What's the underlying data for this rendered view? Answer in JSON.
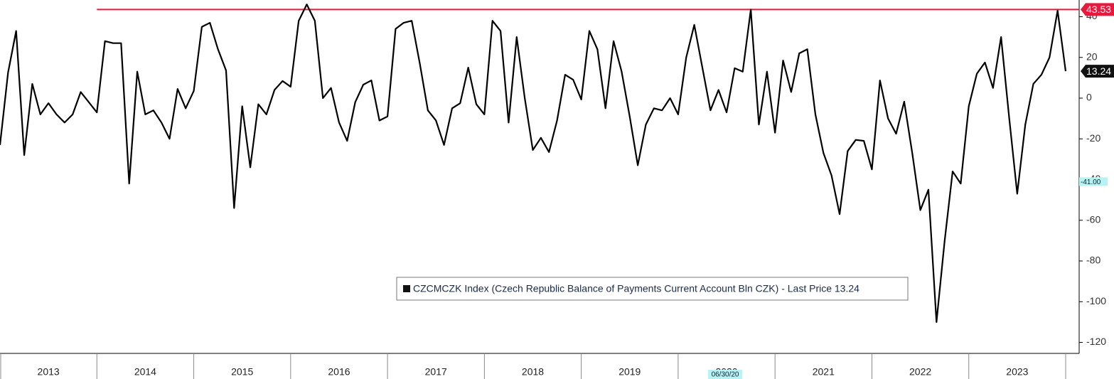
{
  "chart_data": {
    "type": "line",
    "categories": [
      null,
      null,
      null,
      null,
      null,
      null,
      "2013",
      null,
      null,
      null,
      null,
      null,
      null,
      null,
      null,
      null,
      null,
      null,
      "2014",
      null,
      null,
      null,
      null,
      null,
      null,
      null,
      null,
      null,
      null,
      null,
      "2015",
      null,
      null,
      null,
      null,
      null,
      null,
      null,
      null,
      null,
      null,
      null,
      "2016",
      null,
      null,
      null,
      null,
      null,
      null,
      null,
      null,
      null,
      null,
      null,
      "2017",
      null,
      null,
      null,
      null,
      null,
      null,
      null,
      null,
      null,
      null,
      null,
      "2018",
      null,
      null,
      null,
      null,
      null,
      null,
      null,
      null,
      null,
      null,
      null,
      "2019",
      null,
      null,
      null,
      null,
      null,
      null,
      null,
      null,
      null,
      null,
      null,
      "2020",
      null,
      null,
      null,
      null,
      null,
      null,
      null,
      null,
      null,
      null,
      null,
      "2021",
      null,
      null,
      null,
      null,
      null,
      null,
      null,
      null,
      null,
      null,
      null,
      "2022",
      null,
      null,
      null,
      null,
      null,
      null,
      null,
      null,
      null,
      null,
      null,
      "2023",
      null,
      null,
      null,
      null,
      null,
      null
    ],
    "series": [
      {
        "name": "CZCMCZK Index (Czech Republic Balance of Payments Current Account Bln CZK) - Last Price 13.24",
        "color": "#000000",
        "values": [
          -23,
          12.6,
          33,
          -28,
          7,
          -8,
          -2.5,
          -8,
          -12,
          -8,
          3,
          -2,
          -7,
          28,
          27,
          27,
          -42,
          13,
          -8,
          -6,
          -12,
          -20,
          4.5,
          -5,
          3.5,
          35,
          37,
          24,
          13.6,
          -54,
          -4,
          -34,
          -3,
          -8,
          4,
          8.4,
          5.6,
          38,
          46,
          38,
          0,
          5,
          -12,
          -21,
          -2,
          6.6,
          8.7,
          -11,
          -9,
          34,
          37,
          38,
          17,
          -6,
          -11,
          -23,
          -5,
          -2.5,
          15,
          -3,
          -8,
          38,
          33,
          -12,
          30,
          0,
          -25.5,
          -19.5,
          -26.5,
          -11,
          11.5,
          9,
          -0.7,
          33,
          24,
          -5,
          28,
          13,
          -9,
          -33,
          -13,
          -5,
          -6,
          0,
          -8,
          20,
          36,
          15,
          -6,
          4,
          -7,
          14.7,
          13,
          43.53,
          -13,
          13,
          -17,
          18.5,
          3,
          22,
          24,
          -8,
          -27,
          -38,
          -57,
          -26,
          -20.5,
          -21,
          -35,
          8.7,
          -10,
          -17.5,
          -1.7,
          -27,
          -55,
          -45,
          -110,
          -70.5,
          -36,
          -42,
          -4,
          12,
          17.5,
          5,
          30,
          -9.5,
          -47,
          -13,
          7,
          11.5,
          20,
          43,
          13.24
        ]
      }
    ],
    "ylim": [
      -125.4,
      48.2
    ],
    "yticks": [
      40,
      20,
      0,
      -20,
      -40,
      -60,
      -80,
      -100,
      -120
    ],
    "max_line": {
      "value": 43.53,
      "color": "#e8193c"
    },
    "last_price": 13.24,
    "level_marker": {
      "value": -41,
      "label": "-41.00"
    },
    "date_marker": "06/30/20"
  }
}
